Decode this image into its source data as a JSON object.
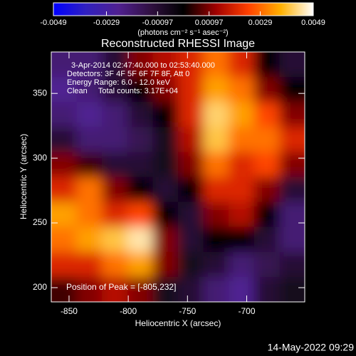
{
  "chart_data": {
    "type": "image",
    "title": "Reconstructed RHESSI Image",
    "colorbar_label": "(photons cm⁻² s⁻¹ asec⁻²)",
    "colorbar_lim": [
      -0.0049,
      0.0049
    ],
    "colorbar_ticks": [
      -0.0049,
      -0.0029,
      -0.00097,
      0.00097,
      0.0029,
      0.0049
    ],
    "colormap": [
      "#0000ff",
      "#3020c0",
      "#502090",
      "#301040",
      "#000000",
      "#a00000",
      "#ff4000",
      "#ffb000",
      "#ffffff"
    ],
    "x_label": "Heliocentric X (arcsec)",
    "y_label": "Heliocentric Y (arcsec)",
    "xlim": [
      -865,
      -651
    ],
    "ylim": [
      189,
      382
    ],
    "xticks": [
      -850,
      -800,
      -750,
      -700
    ],
    "yticks": [
      200,
      250,
      300,
      350
    ],
    "z": [
      [
        -0.002,
        -0.002,
        -0.001,
        0.001,
        0.0015,
        0.002,
        0.003,
        0.002,
        0.0,
        -0.001
      ],
      [
        -0.0025,
        -0.002,
        -0.001,
        0.0,
        0.001,
        0.002,
        0.0035,
        0.003,
        0.001,
        0.0
      ],
      [
        -0.002,
        -0.0025,
        -0.002,
        -0.001,
        0.0,
        0.002,
        0.0042,
        0.0035,
        0.0025,
        0.001
      ],
      [
        -0.001,
        -0.002,
        -0.002,
        -0.0015,
        -0.0005,
        0.0015,
        0.004,
        0.003,
        0.003,
        0.002
      ],
      [
        0.001,
        0.0005,
        -0.001,
        -0.001,
        -0.0005,
        0.001,
        0.003,
        0.002,
        0.0025,
        0.001
      ],
      [
        0.002,
        0.003,
        0.001,
        0.0,
        -0.001,
        0.0,
        0.002,
        0.002,
        0.001,
        -0.001
      ],
      [
        0.0035,
        0.003,
        0.002,
        0.0025,
        0.0,
        -0.001,
        0.001,
        0.0015,
        0.0,
        -0.002
      ],
      [
        0.003,
        0.0035,
        0.004,
        0.0045,
        0.001,
        -0.001,
        0.0,
        0.0,
        -0.001,
        -0.002
      ],
      [
        0.002,
        0.002,
        0.003,
        0.0035,
        0.001,
        -0.0005,
        -0.001,
        -0.002,
        -0.0015,
        -0.001
      ],
      [
        0.0005,
        0.001,
        0.0015,
        0.001,
        -0.0005,
        -0.001,
        -0.002,
        -0.0025,
        -0.001,
        -0.0005
      ]
    ],
    "annotations": [
      "3-Apr-2014 02:47:40.000 to 02:53:40.000",
      "Detectors: 3F 4F 5F 6F 7F 8F, Att 0",
      "Energy Range: 6.0 - 12.0 keV",
      "Clean     Total counts: 3.17E+04"
    ],
    "peak_label": "Position of Peak = [-805,232]",
    "footer": "14-May-2022 09:29"
  }
}
